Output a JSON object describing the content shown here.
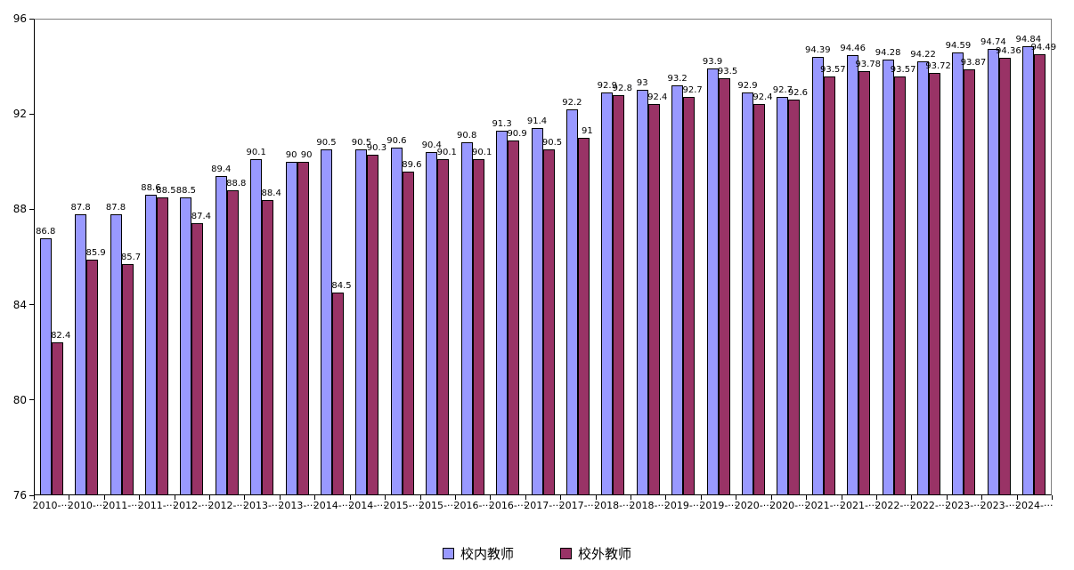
{
  "chart_data": {
    "type": "bar",
    "title": "",
    "xlabel": "",
    "ylabel": "",
    "ylim": [
      76,
      96
    ],
    "yticks": [
      "96",
      "92",
      "88",
      "84",
      "80",
      "76"
    ],
    "grid": false,
    "legend_position": "bottom",
    "categories": [
      "2010-···",
      "2010-···",
      "2011-···",
      "2011-···",
      "2012-···",
      "2012-···",
      "2013-···",
      "2013-···",
      "2014-···",
      "2014-···",
      "2015-···",
      "2015-···",
      "2016-···",
      "2016-···",
      "2017-···",
      "2017-···",
      "2018-···",
      "2018-···",
      "2019-···",
      "2019-···",
      "2020-···",
      "2020-···",
      "2021-···",
      "2021-···",
      "2022-···",
      "2022-···",
      "2023-···",
      "2023-···",
      "2024-···"
    ],
    "series": [
      {
        "name": "校内教师",
        "color": "#9999FF",
        "values": [
          86.8,
          87.8,
          87.8,
          88.6,
          88.5,
          89.4,
          90.1,
          90,
          90.5,
          90.5,
          90.6,
          90.4,
          90.8,
          91.3,
          91.4,
          92.2,
          92.9,
          93,
          93.2,
          93.9,
          92.9,
          92.7,
          94.39,
          94.46,
          94.28,
          94.22,
          94.59,
          94.74,
          94.84
        ],
        "labels": [
          "86.8",
          "87.8",
          "87.8",
          "88.6",
          "88.5",
          "89.4",
          "90.1",
          "90",
          "90.5",
          "90.5",
          "90.6",
          "90.4",
          "90.8",
          "91.3",
          "91.4",
          "92.2",
          "92.9",
          "93",
          "93.2",
          "93.9",
          "92.9",
          "92.7",
          "94.39",
          "94.46",
          "94.28",
          "94.22",
          "94.59",
          "94.74",
          "94.84"
        ]
      },
      {
        "name": "校外教师",
        "color": "#993366",
        "values": [
          82.4,
          85.9,
          85.7,
          88.5,
          87.4,
          88.8,
          88.4,
          90,
          84.5,
          90.3,
          89.6,
          90.1,
          90.1,
          90.9,
          90.5,
          91,
          92.8,
          92.4,
          92.7,
          93.5,
          92.4,
          92.6,
          93.57,
          93.78,
          93.57,
          93.72,
          93.87,
          94.36,
          94.49
        ],
        "labels": [
          "82.4",
          "85.9",
          "85.7",
          "88.5",
          "87.4",
          "88.8",
          "88.4",
          "90",
          "84.5",
          "90.3",
          "89.6",
          "90.1",
          "90.1",
          "90.9",
          "90.5",
          "91",
          "92.8",
          "92.4",
          "92.7",
          "93.5",
          "92.4",
          "92.6",
          "93.57",
          "93.78",
          "93.57",
          "93.72",
          "93.87",
          "94.36",
          "94.49"
        ]
      }
    ]
  }
}
